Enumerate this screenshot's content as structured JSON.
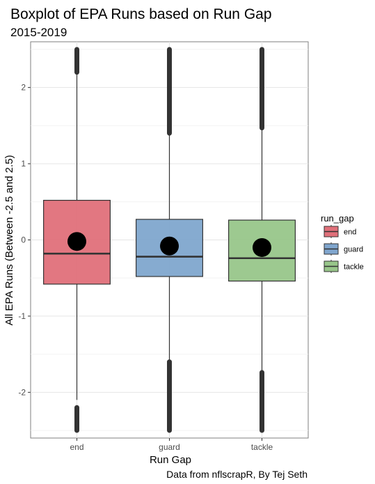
{
  "chart_data": {
    "type": "boxplot",
    "title": "Boxplot of EPA Runs based on Run Gap",
    "subtitle": "2015-2019",
    "xlabel": "Run Gap",
    "ylabel": "All EPA Runs (Between -2.5 and 2.5)",
    "caption": "Data from nflscrapR, By Tej Seth",
    "ylim": [
      -2.6,
      2.6
    ],
    "yticks": [
      -2,
      -1,
      0,
      1,
      2
    ],
    "ytick_labels": [
      "-2",
      "-1",
      "0",
      "1",
      "2"
    ],
    "grid": true,
    "legend": {
      "title": "run_gap",
      "position": "right"
    },
    "categories": [
      "end",
      "guard",
      "tackle"
    ],
    "colors": {
      "end": "#E0707A",
      "guard": "#80A6CE",
      "tackle": "#98C68A"
    },
    "boxes": [
      {
        "name": "end",
        "whisker_low": -2.1,
        "q1": -0.58,
        "median": -0.18,
        "q3": 0.52,
        "whisker_high": 2.17,
        "mean": -0.02,
        "outliers_low": [
          -2.2,
          -2.5
        ],
        "outliers_high": [
          2.2,
          2.5
        ]
      },
      {
        "name": "guard",
        "whisker_low": -1.58,
        "q1": -0.48,
        "median": -0.22,
        "q3": 0.27,
        "whisker_high": 1.38,
        "mean": -0.08,
        "outliers_low": [
          -1.6,
          -2.5
        ],
        "outliers_high": [
          1.4,
          2.5
        ]
      },
      {
        "name": "tackle",
        "whisker_low": -1.72,
        "q1": -0.54,
        "median": -0.24,
        "q3": 0.26,
        "whisker_high": 1.45,
        "mean": -0.1,
        "outliers_low": [
          -1.74,
          -2.5
        ],
        "outliers_high": [
          1.47,
          2.5
        ]
      }
    ]
  }
}
